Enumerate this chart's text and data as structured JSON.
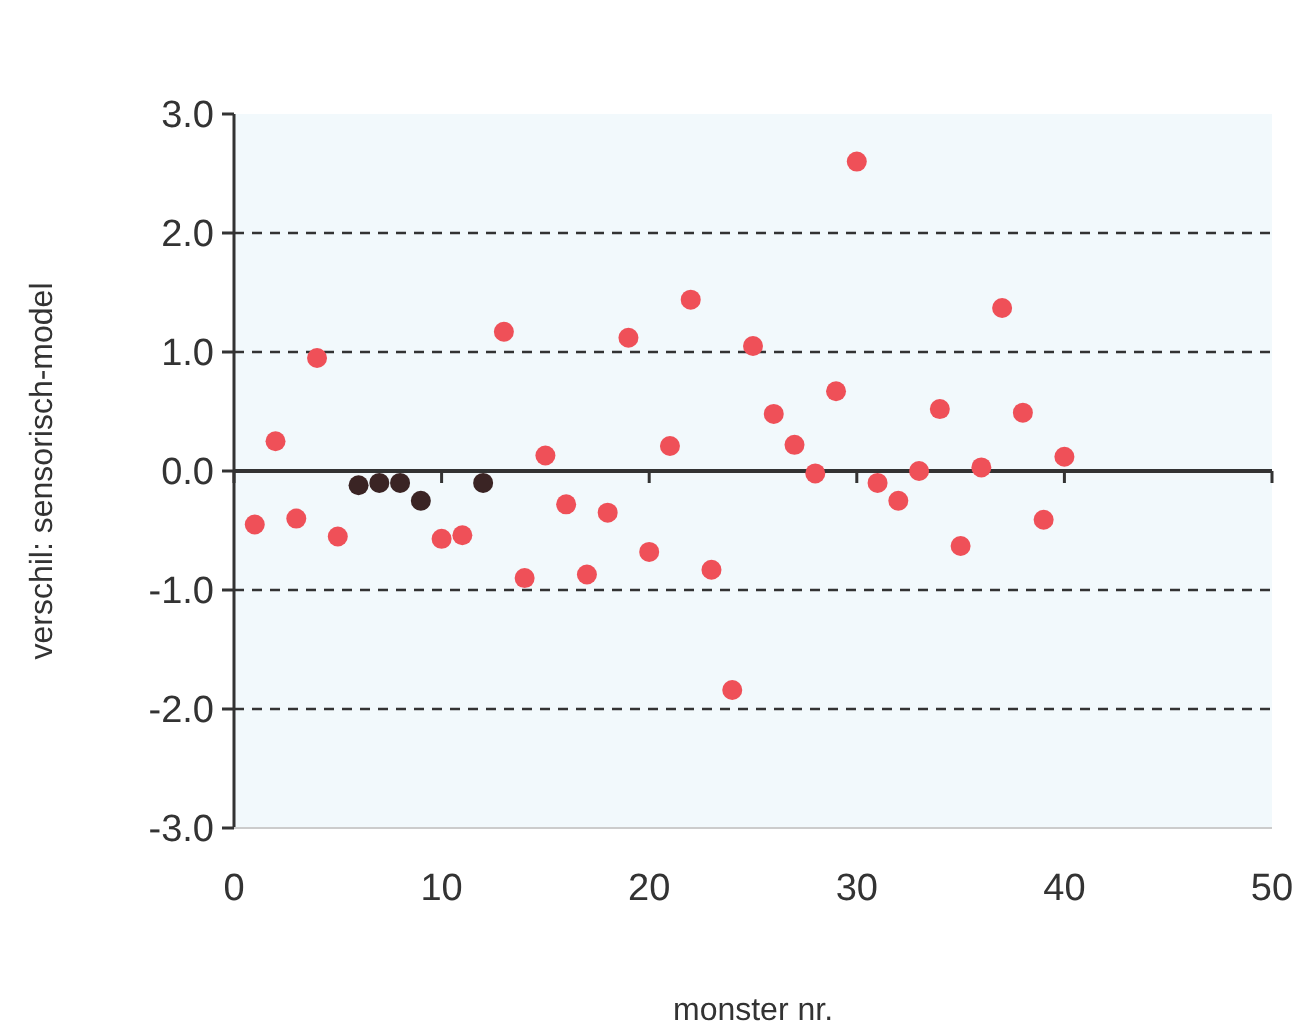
{
  "chart_data": {
    "type": "scatter",
    "xlabel": "monster nr.",
    "ylabel": "verschil: sensorisch-model",
    "xlim": [
      0,
      50
    ],
    "xticks": [
      0,
      10,
      20,
      30,
      40,
      50
    ],
    "ylim": [
      -3,
      3
    ],
    "yticks": [
      {
        "value": -3,
        "label": "-3.0"
      },
      {
        "value": -2,
        "label": "-2.0"
      },
      {
        "value": -1,
        "label": "-1.0"
      },
      {
        "value": 0,
        "label": "0.0"
      },
      {
        "value": 1,
        "label": "1.0"
      },
      {
        "value": 2,
        "label": "2.0"
      },
      {
        "value": 3,
        "label": "3.0"
      }
    ],
    "grid": "y",
    "marker": "circle",
    "series": [
      {
        "color": "#ef5058",
        "x": [
          1,
          2,
          3,
          4,
          5,
          10,
          11,
          13,
          14,
          15,
          16,
          17,
          18,
          19,
          20,
          21,
          22,
          23,
          24,
          25,
          26,
          27,
          28,
          29,
          30,
          31,
          32,
          33,
          34,
          35,
          36,
          37,
          38,
          39,
          40
        ],
        "values": [
          -0.45,
          0.25,
          -0.4,
          0.95,
          -0.55,
          -0.57,
          -0.54,
          1.17,
          -0.9,
          0.13,
          -0.28,
          -0.87,
          -0.35,
          1.12,
          -0.68,
          0.21,
          1.44,
          -0.83,
          -1.84,
          1.05,
          0.48,
          0.22,
          -0.02,
          0.67,
          2.6,
          -0.1,
          -0.25,
          0,
          0.52,
          -0.63,
          0.03,
          1.37,
          0.49,
          -0.41,
          0.12
        ]
      },
      {
        "color": "#3a2424",
        "x": [
          6,
          7,
          8,
          9,
          12
        ],
        "values": [
          -0.12,
          -0.1,
          -0.1,
          -0.25,
          -0.1
        ]
      }
    ]
  }
}
